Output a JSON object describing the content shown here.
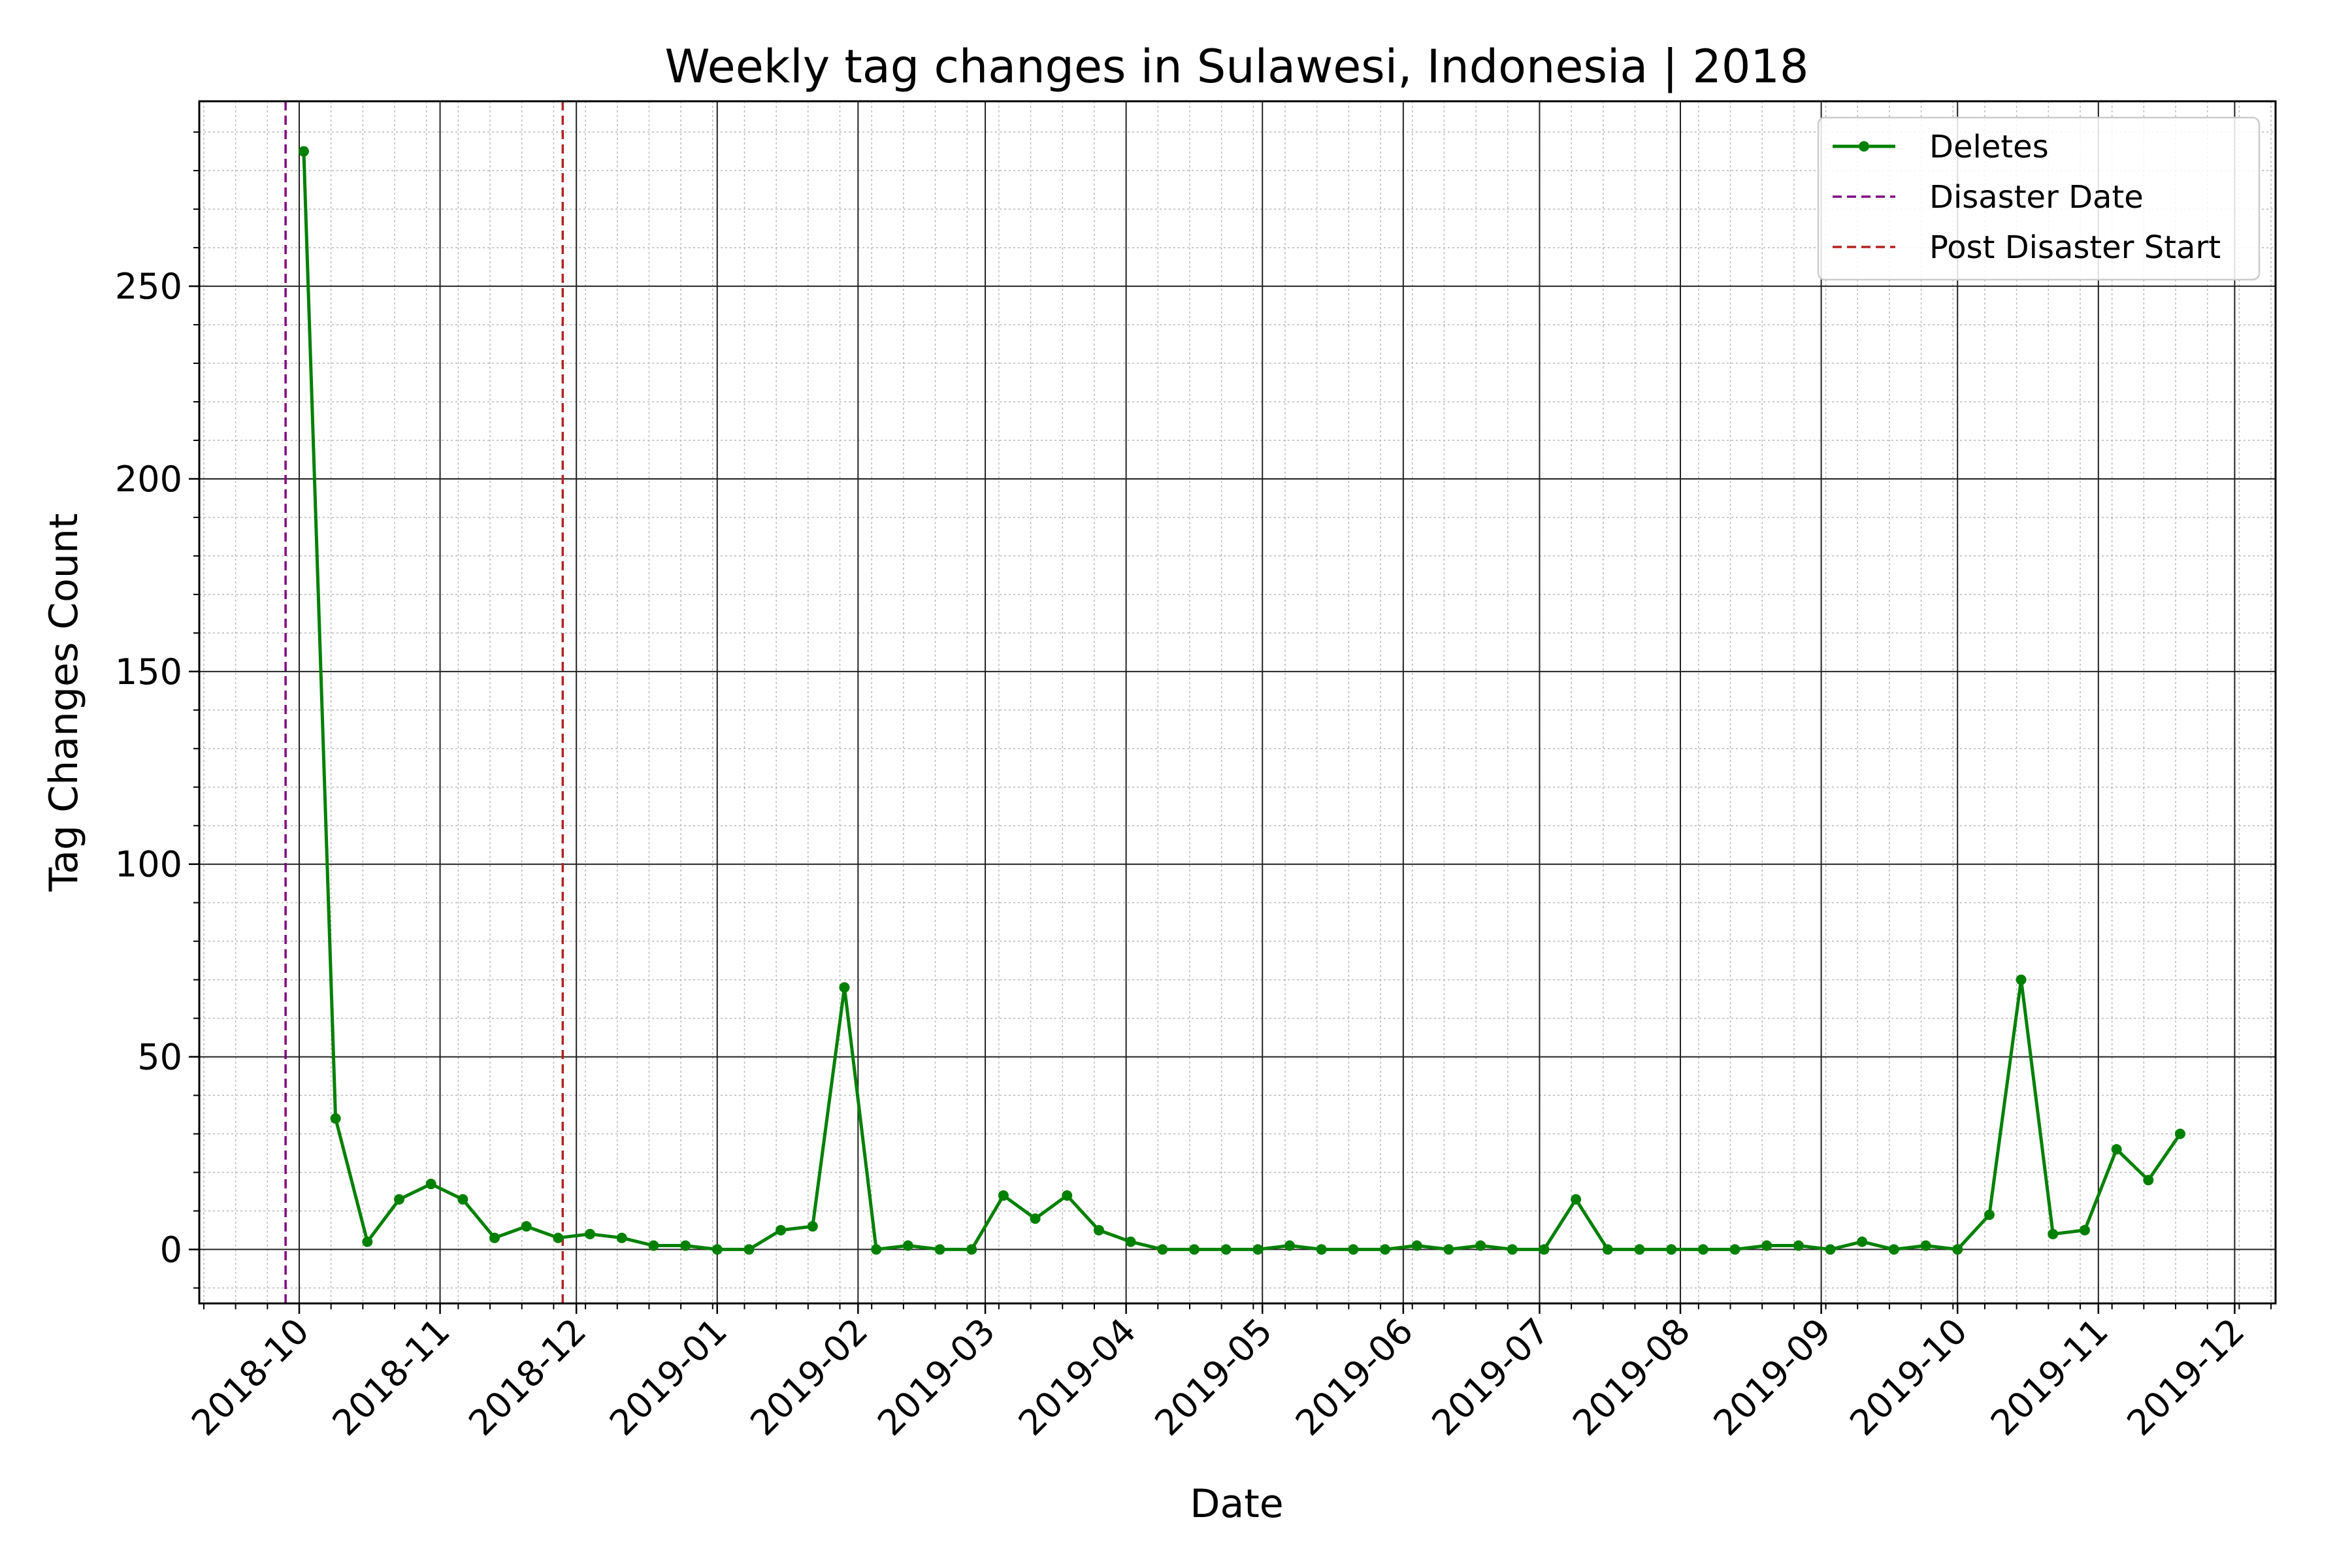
{
  "chart_data": {
    "type": "line",
    "title": "Weekly tag changes in Sulawesi, Indonesia | 2018",
    "xlabel": "Date",
    "ylabel": "Tag Changes Count",
    "x_axis": "date",
    "xlim": [
      "2018-09-09",
      "2019-12-10"
    ],
    "ylim": [
      -14,
      298
    ],
    "x_ticks": [
      "2018-10-01",
      "2018-11-01",
      "2018-12-01",
      "2019-01-01",
      "2019-02-01",
      "2019-03-01",
      "2019-04-01",
      "2019-05-01",
      "2019-06-01",
      "2019-07-01",
      "2019-08-01",
      "2019-09-01",
      "2019-10-01",
      "2019-11-01",
      "2019-12-01"
    ],
    "x_tick_labels": [
      "2018-10",
      "2018-11",
      "2018-12",
      "2019-01",
      "2019-02",
      "2019-03",
      "2019-04",
      "2019-05",
      "2019-06",
      "2019-07",
      "2019-08",
      "2019-09",
      "2019-10",
      "2019-11",
      "2019-12"
    ],
    "y_ticks": [
      0,
      50,
      100,
      150,
      200,
      250
    ],
    "y_tick_labels": [
      "0",
      "50",
      "100",
      "150",
      "200",
      "250"
    ],
    "grid": true,
    "minor_grid": true,
    "legend_position": "top-right",
    "series": [
      {
        "name": "Deletes",
        "color": "#008000",
        "marker": "circle",
        "x": [
          "2018-10-02",
          "2018-10-09",
          "2018-10-16",
          "2018-10-23",
          "2018-10-30",
          "2018-11-06",
          "2018-11-13",
          "2018-11-20",
          "2018-11-27",
          "2018-12-04",
          "2018-12-11",
          "2018-12-18",
          "2018-12-25",
          "2019-01-01",
          "2019-01-08",
          "2019-01-15",
          "2019-01-22",
          "2019-01-29",
          "2019-02-05",
          "2019-02-12",
          "2019-02-19",
          "2019-02-26",
          "2019-03-05",
          "2019-03-12",
          "2019-03-19",
          "2019-03-26",
          "2019-04-02",
          "2019-04-09",
          "2019-04-16",
          "2019-04-23",
          "2019-04-30",
          "2019-05-07",
          "2019-05-14",
          "2019-05-21",
          "2019-05-28",
          "2019-06-04",
          "2019-06-11",
          "2019-06-18",
          "2019-06-25",
          "2019-07-02",
          "2019-07-09",
          "2019-07-16",
          "2019-07-23",
          "2019-07-30",
          "2019-08-06",
          "2019-08-13",
          "2019-08-20",
          "2019-08-27",
          "2019-09-03",
          "2019-09-10",
          "2019-09-17",
          "2019-09-24",
          "2019-10-01",
          "2019-10-08",
          "2019-10-15",
          "2019-10-22",
          "2019-10-29",
          "2019-11-05",
          "2019-11-12",
          "2019-11-19"
        ],
        "values": [
          285,
          34,
          2,
          13,
          17,
          13,
          3,
          6,
          3,
          4,
          3,
          1,
          1,
          0,
          0,
          5,
          6,
          68,
          0,
          1,
          0,
          0,
          14,
          8,
          14,
          5,
          2,
          0,
          0,
          0,
          0,
          1,
          0,
          0,
          0,
          1,
          0,
          1,
          0,
          0,
          13,
          0,
          0,
          0,
          0,
          0,
          1,
          1,
          0,
          2,
          0,
          1,
          0,
          9,
          70,
          4,
          5,
          26,
          18,
          30
        ]
      }
    ],
    "vertical_lines": [
      {
        "name": "Disaster Date",
        "x": "2018-09-28",
        "color": "#800080",
        "style": "dashed"
      },
      {
        "name": "Post Disaster Start",
        "x": "2018-11-28",
        "color": "#b22222",
        "style": "dashed"
      }
    ]
  }
}
